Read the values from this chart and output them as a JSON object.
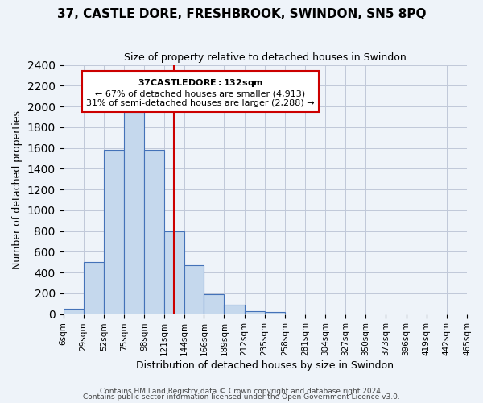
{
  "title": "37, CASTLE DORE, FRESHBROOK, SWINDON, SN5 8PQ",
  "subtitle": "Size of property relative to detached houses in Swindon",
  "xlabel": "Distribution of detached houses by size in Swindon",
  "ylabel": "Number of detached properties",
  "bin_edges": [
    6,
    29,
    52,
    75,
    98,
    121,
    144,
    166,
    189,
    212,
    235,
    258,
    281,
    304,
    327,
    350,
    373,
    396,
    419,
    442,
    465
  ],
  "bar_heights": [
    50,
    500,
    1580,
    1950,
    1580,
    800,
    470,
    190,
    90,
    30,
    20,
    0,
    0,
    0,
    0,
    0,
    0,
    0,
    0,
    0
  ],
  "bar_color": "#c5d8ed",
  "bar_edge_color": "#4472b8",
  "vline_x": 132,
  "vline_color": "#cc0000",
  "ylim": [
    0,
    2400
  ],
  "yticks": [
    0,
    200,
    400,
    600,
    800,
    1000,
    1200,
    1400,
    1600,
    1800,
    2000,
    2200,
    2400
  ],
  "annotation_title": "37 CASTLE DORE: 132sqm",
  "annotation_line1": "← 67% of detached houses are smaller (4,913)",
  "annotation_line2": "31% of semi-detached houses are larger (2,288) →",
  "annotation_box_color": "#ffffff",
  "annotation_box_edge_color": "#cc0000",
  "bg_color": "#eef3f9",
  "footer1": "Contains HM Land Registry data © Crown copyright and database right 2024.",
  "footer2": "Contains public sector information licensed under the Open Government Licence v3.0."
}
